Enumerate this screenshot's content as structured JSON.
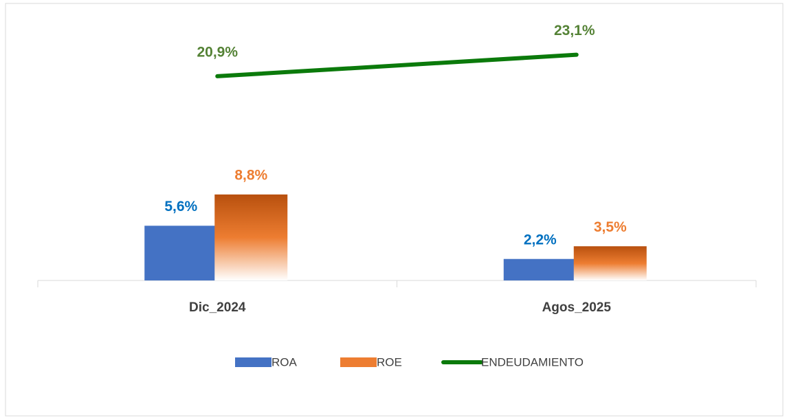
{
  "chart_data": {
    "type": "combo",
    "categories": [
      "Dic_2024",
      "Agos_2025"
    ],
    "series": [
      {
        "name": "ROA",
        "type": "bar",
        "color": "#4472c4",
        "values": [
          5.6,
          2.2
        ],
        "value_labels": [
          "5,6%",
          "2,2%"
        ],
        "label_color": "#0070c0"
      },
      {
        "name": "ROE",
        "type": "bar",
        "color": "#ed7d31",
        "values": [
          8.8,
          3.5
        ],
        "value_labels": [
          "8,8%",
          "3,5%"
        ],
        "label_color": "#ed7d31"
      },
      {
        "name": "ENDEUDAMIENTO",
        "type": "line",
        "color": "#0b7a0b",
        "values": [
          20.9,
          23.1
        ],
        "value_labels": [
          "20,9%",
          "23,1%"
        ],
        "label_color": "#548235"
      }
    ],
    "ylim": [
      0,
      28
    ]
  }
}
